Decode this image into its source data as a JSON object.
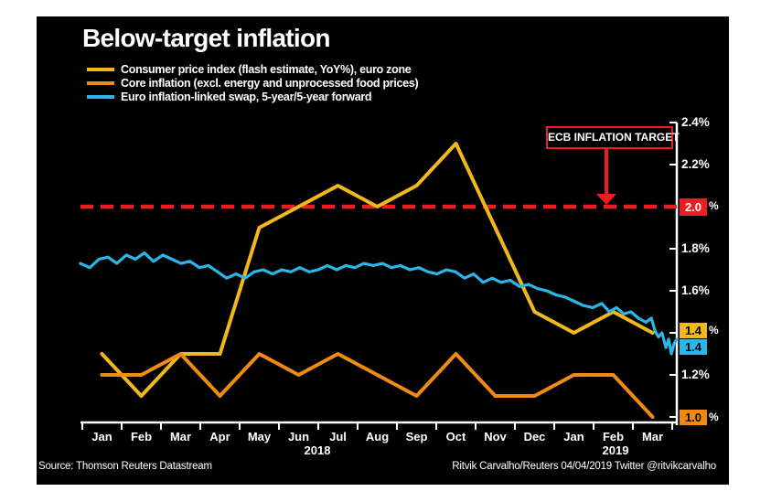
{
  "header": {
    "title": "Below-target inflation"
  },
  "legend": {
    "items": [
      {
        "label": "Consumer price index (flash estimate, YoY%), euro zone",
        "color": "#F0B81A"
      },
      {
        "label": "Core inflation (excl. energy and unprocessed food prices)",
        "color": "#EF8B10"
      },
      {
        "label": "Euro inflation-linked swap, 5-year/5-year forward",
        "color": "#29B7E8"
      }
    ]
  },
  "annotation": {
    "label": "ECB INFLATION TARGET",
    "color": "#EE1C23"
  },
  "axis": {
    "plain_labels": [
      "2.4%",
      "2.2%",
      "1.8%",
      "1.6%",
      "1.2%"
    ],
    "value_boxes": [
      {
        "text": "2.0",
        "suffix": "%",
        "bg": "#EE1C23",
        "fg": "#ffffff"
      },
      {
        "text": "1.4",
        "suffix": "%",
        "bg": "#F0B81A",
        "fg": "#000000"
      },
      {
        "text": "1.4",
        "suffix": "",
        "bg": "#29B7E8",
        "fg": "#000000"
      },
      {
        "text": "1.0",
        "suffix": "%",
        "bg": "#EF8B10",
        "fg": "#000000"
      }
    ]
  },
  "footer": {
    "source": "Source: Thomson Reuters Datastream",
    "credit": "Ritvik Carvalho/Reuters 04/04/2019 Twitter @ritvikcarvalho"
  },
  "chart_data": {
    "type": "line",
    "title": "Below-target inflation",
    "categories": [
      "Jan",
      "Feb",
      "Mar",
      "Apr",
      "May",
      "Jun",
      "Jul",
      "Aug",
      "Sep",
      "Oct",
      "Nov",
      "Dec",
      "Jan",
      "Feb",
      "Mar"
    ],
    "year_labels": [
      "2018",
      "2019"
    ],
    "xlabel": "",
    "ylabel": "percent",
    "ylim": [
      1.0,
      2.4
    ],
    "y_ticks": [
      1.0,
      1.2,
      1.4,
      1.6,
      1.8,
      2.0,
      2.2,
      2.4
    ],
    "grid": false,
    "legend_position": "top-left",
    "target_line": {
      "value": 2.0,
      "label": "ECB INFLATION TARGET",
      "style": "dashed",
      "color": "#EE1C23"
    },
    "series": [
      {
        "name": "Consumer price index (flash estimate, YoY%), euro zone",
        "color": "#F0B81A",
        "end_label": "1.4",
        "values": [
          1.3,
          1.1,
          1.3,
          1.3,
          1.9,
          2.0,
          2.1,
          2.0,
          2.1,
          2.3,
          1.9,
          1.5,
          1.4,
          1.5,
          1.4
        ]
      },
      {
        "name": "Core inflation (excl. energy and unprocessed food prices)",
        "color": "#EF8B10",
        "end_label": "1.0",
        "values": [
          1.2,
          1.2,
          1.3,
          1.1,
          1.3,
          1.2,
          1.3,
          1.2,
          1.1,
          1.3,
          1.1,
          1.1,
          1.2,
          1.2,
          1.0
        ]
      },
      {
        "name": "Euro inflation-linked swap, 5-year/5-year forward",
        "color": "#29B7E8",
        "end_label": "1.4",
        "points": [
          [
            -0.55,
            1.73
          ],
          [
            -0.31,
            1.71
          ],
          [
            -0.08,
            1.75
          ],
          [
            0.15,
            1.76
          ],
          [
            0.38,
            1.73
          ],
          [
            0.62,
            1.77
          ],
          [
            0.85,
            1.75
          ],
          [
            1.08,
            1.78
          ],
          [
            1.31,
            1.74
          ],
          [
            1.55,
            1.77
          ],
          [
            1.78,
            1.75
          ],
          [
            2.01,
            1.73
          ],
          [
            2.24,
            1.74
          ],
          [
            2.48,
            1.71
          ],
          [
            2.71,
            1.72
          ],
          [
            2.94,
            1.69
          ],
          [
            3.17,
            1.66
          ],
          [
            3.41,
            1.68
          ],
          [
            3.64,
            1.66
          ],
          [
            3.87,
            1.69
          ],
          [
            4.1,
            1.7
          ],
          [
            4.34,
            1.68
          ],
          [
            4.57,
            1.7
          ],
          [
            4.8,
            1.69
          ],
          [
            5.03,
            1.71
          ],
          [
            5.27,
            1.69
          ],
          [
            5.5,
            1.7
          ],
          [
            5.73,
            1.72
          ],
          [
            5.97,
            1.7
          ],
          [
            6.2,
            1.72
          ],
          [
            6.43,
            1.71
          ],
          [
            6.66,
            1.73
          ],
          [
            6.9,
            1.72
          ],
          [
            7.13,
            1.73
          ],
          [
            7.36,
            1.71
          ],
          [
            7.59,
            1.72
          ],
          [
            7.83,
            1.7
          ],
          [
            8.06,
            1.71
          ],
          [
            8.29,
            1.69
          ],
          [
            8.52,
            1.68
          ],
          [
            8.76,
            1.7
          ],
          [
            8.99,
            1.69
          ],
          [
            9.22,
            1.66
          ],
          [
            9.45,
            1.68
          ],
          [
            9.69,
            1.64
          ],
          [
            9.92,
            1.66
          ],
          [
            10.15,
            1.64
          ],
          [
            10.38,
            1.65
          ],
          [
            10.62,
            1.62
          ],
          [
            10.85,
            1.63
          ],
          [
            11.08,
            1.61
          ],
          [
            11.31,
            1.6
          ],
          [
            11.55,
            1.58
          ],
          [
            11.78,
            1.57
          ],
          [
            12.01,
            1.55
          ],
          [
            12.24,
            1.53
          ],
          [
            12.48,
            1.52
          ],
          [
            12.71,
            1.54
          ],
          [
            12.9,
            1.5
          ],
          [
            13.08,
            1.52
          ],
          [
            13.27,
            1.49
          ],
          [
            13.45,
            1.5
          ],
          [
            13.64,
            1.47
          ],
          [
            13.83,
            1.45
          ],
          [
            13.97,
            1.47
          ],
          [
            14.06,
            1.41
          ],
          [
            14.15,
            1.38
          ],
          [
            14.24,
            1.4
          ],
          [
            14.34,
            1.33
          ],
          [
            14.41,
            1.37
          ],
          [
            14.48,
            1.3
          ],
          [
            14.55,
            1.35
          ],
          [
            14.62,
            1.37
          ]
        ]
      }
    ]
  }
}
